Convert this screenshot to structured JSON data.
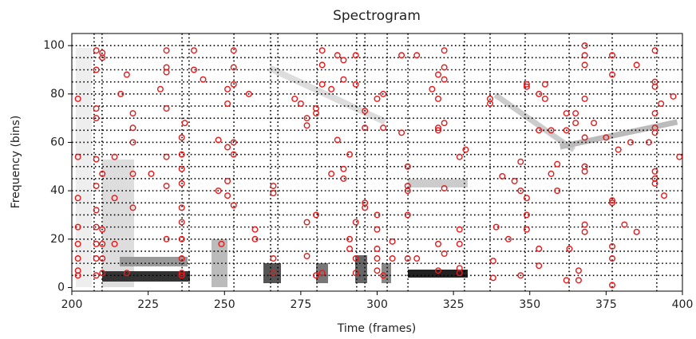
{
  "chart_data": {
    "type": "scatter",
    "title": "Spectrogram",
    "x_label": "Time (frames)",
    "y_label": "Frequency (bins)",
    "xlim": [
      200,
      400
    ],
    "xticks": [
      200,
      225,
      250,
      275,
      300,
      325,
      350,
      375,
      400
    ],
    "ylim": [
      -1.5,
      105
    ],
    "yticks": [
      0,
      20,
      40,
      60,
      80,
      100
    ],
    "xgrid": [
      207.3,
      209.9,
      236.1,
      238.4,
      253.1,
      265.1,
      267.5,
      280.3,
      293.3,
      296,
      303.3,
      310.1,
      328.6,
      337,
      348.5,
      362.9,
      377,
      391.6
    ],
    "ygrid": [
      5,
      10,
      15,
      20,
      25,
      30,
      35,
      40,
      45,
      50,
      55,
      60,
      65,
      70,
      75,
      80,
      85,
      90,
      95,
      100
    ],
    "grid_color": "#000000",
    "color": "#e41a1c",
    "x": [
      202,
      202,
      202,
      202,
      202,
      202,
      202,
      202,
      208,
      208,
      208,
      208,
      208,
      208,
      208,
      208,
      208,
      208,
      208,
      210,
      210,
      210,
      210,
      210,
      210,
      210,
      214,
      214,
      214,
      216,
      218,
      218,
      220,
      220,
      220,
      220,
      220,
      226,
      229,
      231,
      231,
      231,
      231,
      231,
      231,
      231,
      236,
      236,
      236,
      236,
      236,
      236,
      236,
      236,
      236,
      236,
      237,
      240,
      240,
      243,
      248,
      248,
      249,
      251,
      251,
      251,
      251,
      251,
      253,
      253,
      253,
      253,
      253,
      253,
      258,
      260,
      260,
      266,
      266,
      266,
      266,
      273,
      275,
      277,
      277,
      277,
      277,
      280,
      280,
      280,
      280,
      282,
      282,
      282,
      282,
      285,
      285,
      287,
      287,
      289,
      289,
      289,
      289,
      291,
      291,
      291,
      293,
      293,
      293,
      293,
      293,
      296,
      296,
      296,
      296,
      300,
      300,
      300,
      300,
      300,
      300,
      302,
      302,
      302,
      305,
      305,
      308,
      308,
      310,
      310,
      310,
      310,
      310,
      313,
      313,
      318,
      320,
      320,
      320,
      320,
      320,
      320,
      322,
      322,
      322,
      322,
      322,
      322,
      327,
      327,
      327,
      327,
      327,
      329,
      337,
      337,
      338,
      338,
      339,
      341,
      343,
      345,
      347,
      347,
      347,
      349,
      349,
      349,
      349,
      349,
      353,
      353,
      353,
      353,
      355,
      355,
      357,
      357,
      359,
      359,
      362,
      362,
      362,
      363,
      365,
      365,
      366,
      366,
      368,
      368,
      368,
      368,
      368,
      368,
      368,
      368,
      368,
      371,
      375,
      377,
      377,
      377,
      377,
      377,
      377,
      377,
      379,
      381,
      383,
      385,
      385,
      389,
      391,
      391,
      391,
      391,
      391,
      391,
      391,
      391,
      391,
      393,
      394,
      397,
      399
    ],
    "values": [
      78,
      54,
      37,
      25,
      18,
      12,
      7,
      5,
      98,
      90,
      74,
      70,
      53,
      42,
      32,
      25,
      18,
      12,
      5,
      97,
      95,
      47,
      24,
      18,
      12,
      6,
      54,
      37,
      18,
      80,
      88,
      6,
      72,
      66,
      60,
      47,
      33,
      47,
      82,
      98,
      91,
      89,
      74,
      54,
      42,
      20,
      62,
      55,
      49,
      43,
      33,
      27,
      20,
      12,
      6,
      5,
      68,
      98,
      90,
      86,
      61,
      40,
      18,
      82,
      76,
      58,
      44,
      38,
      98,
      91,
      84,
      60,
      55,
      34,
      80,
      24,
      20,
      42,
      39,
      12,
      6,
      78,
      76,
      70,
      67,
      27,
      13,
      74,
      72,
      30,
      5,
      98,
      92,
      84,
      6,
      82,
      47,
      96,
      61,
      94,
      86,
      49,
      45,
      55,
      20,
      16,
      96,
      84,
      27,
      12,
      6,
      73,
      66,
      35,
      33,
      78,
      30,
      24,
      16,
      12,
      7,
      80,
      66,
      5,
      19,
      12,
      96,
      64,
      50,
      42,
      40,
      30,
      12,
      96,
      12,
      82,
      88,
      78,
      66,
      65,
      18,
      7,
      98,
      91,
      86,
      68,
      41,
      14,
      54,
      24,
      18,
      8,
      6,
      57,
      78,
      76,
      11,
      4,
      25,
      46,
      20,
      44,
      52,
      40,
      5,
      84,
      83,
      37,
      30,
      24,
      80,
      65,
      16,
      9,
      84,
      78,
      65,
      47,
      40,
      51,
      72,
      65,
      3,
      16,
      72,
      68,
      3,
      7,
      100,
      96,
      92,
      78,
      62,
      50,
      48,
      26,
      23,
      68,
      62,
      96,
      88,
      36,
      35,
      17,
      12,
      1,
      57,
      26,
      60,
      92,
      23,
      60,
      98,
      85,
      83,
      72,
      66,
      64,
      48,
      45,
      43,
      76,
      38,
      79,
      54
    ]
  }
}
